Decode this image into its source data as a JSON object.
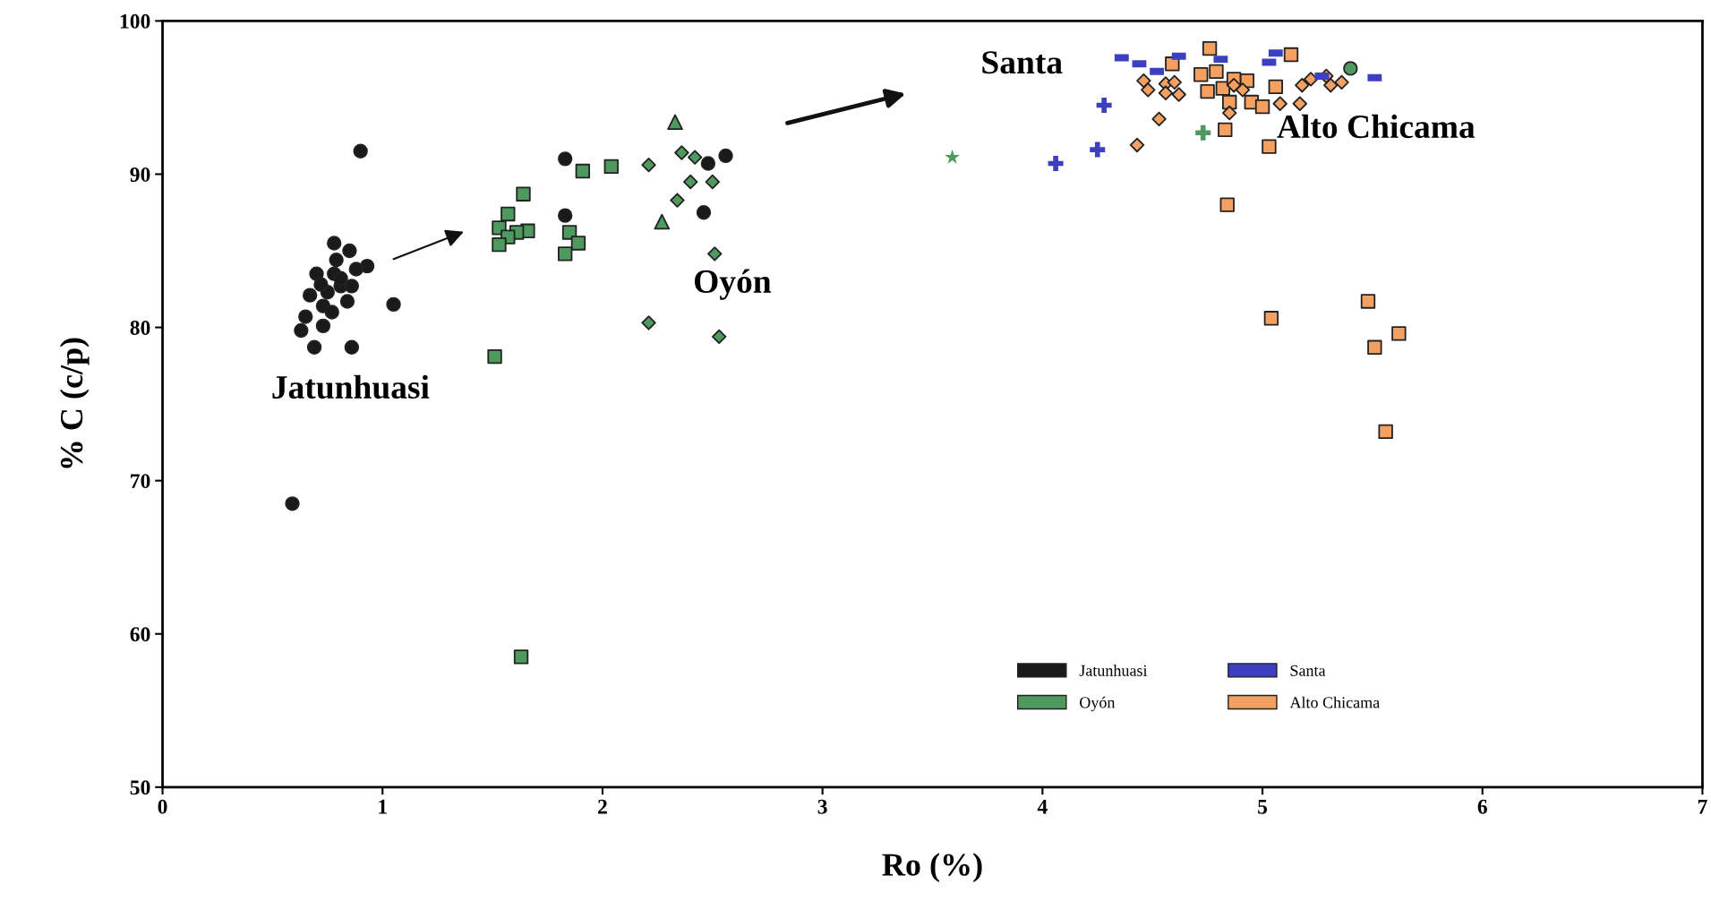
{
  "chart_data": {
    "type": "scatter",
    "xlabel": "Ro (%)",
    "ylabel": "% C (c/p)",
    "xlim": [
      0,
      7
    ],
    "xticks": [
      0,
      1,
      2,
      3,
      4,
      5,
      6,
      7
    ],
    "ylim": [
      50,
      100
    ],
    "yticks": [
      50,
      60,
      70,
      80,
      90,
      100
    ],
    "grid": false,
    "legend": "bottom right",
    "annotations": [
      "Jatunhuasi",
      "Oyón",
      "Santa",
      "Alto Chicama"
    ],
    "series": [
      {
        "name": "Jatunhuasi",
        "color": "#1a1a1a",
        "marker": "circle",
        "x": [
          0.9,
          0.59,
          0.78,
          0.63,
          0.69,
          0.86,
          1.05,
          0.93,
          0.88,
          0.85,
          0.78,
          0.79,
          0.7,
          0.67,
          0.73,
          0.65,
          0.73,
          0.75,
          0.81,
          0.84,
          0.77,
          0.81,
          0.86,
          0.72,
          1.83,
          1.83,
          2.48,
          2.56,
          2.46
        ],
        "values": [
          91.5,
          68.5,
          83.5,
          79.8,
          78.7,
          78.7,
          81.5,
          84.0,
          83.8,
          85.0,
          85.5,
          84.4,
          83.5,
          82.1,
          81.4,
          80.7,
          80.1,
          82.3,
          82.7,
          81.7,
          81.0,
          83.2,
          82.7,
          82.8,
          91.0,
          87.3,
          90.7,
          91.2,
          87.5
        ]
      },
      {
        "name": "Oyón",
        "color": "#4e9a5e",
        "marker": "square",
        "x": [
          1.91,
          2.04,
          1.64,
          1.57,
          1.53,
          1.66,
          1.61,
          1.57,
          1.53,
          1.85,
          1.89,
          1.83,
          1.51,
          1.63
        ],
        "values": [
          90.2,
          90.5,
          88.7,
          87.4,
          86.5,
          86.3,
          86.2,
          85.9,
          85.4,
          86.2,
          85.5,
          84.8,
          78.1,
          58.5
        ]
      },
      {
        "color": "#4e9a5e",
        "marker": "diamond",
        "x": [
          2.21,
          2.36,
          2.42,
          2.4,
          2.5,
          2.34,
          2.51,
          2.21,
          2.53
        ],
        "values": [
          90.6,
          91.4,
          91.1,
          89.5,
          89.5,
          88.3,
          84.8,
          80.3,
          79.4
        ]
      },
      {
        "color": "#4e9a5e",
        "marker": "triangle",
        "x": [
          2.27,
          2.33
        ],
        "values": [
          86.9,
          93.4
        ]
      },
      {
        "color": "#4e9a5e",
        "marker": "star",
        "x": [
          3.59
        ],
        "values": [
          91.1
        ]
      },
      {
        "color": "#4e9a5e",
        "marker": "cross",
        "x": [
          4.73
        ],
        "values": [
          92.7
        ]
      },
      {
        "color": "#4e9a5e",
        "marker": "circle",
        "x": [
          5.4
        ],
        "values": [
          96.9
        ]
      },
      {
        "name": "Santa",
        "color": "#3b3fc0",
        "marker": "cross",
        "x": [
          4.28,
          4.25,
          4.06
        ],
        "values": [
          94.5,
          91.6,
          90.7
        ]
      },
      {
        "color": "#3b3fc0",
        "x": [
          4.36,
          4.44,
          4.52,
          4.62,
          4.81,
          5.03,
          5.06,
          5.27,
          5.51
        ],
        "values": [
          97.6,
          97.2,
          96.7,
          97.7,
          97.5,
          97.3,
          97.9,
          96.4,
          96.3
        ]
      },
      {
        "name": "Alto Chicama",
        "color": "#f4a060",
        "marker": "square",
        "x": [
          4.76,
          5.13,
          4.59,
          4.72,
          4.79,
          4.75,
          4.82,
          4.93,
          4.85,
          4.95,
          5.0,
          5.06,
          4.83,
          5.03,
          4.84,
          4.87,
          5.04,
          5.48,
          5.62,
          5.51,
          5.56
        ],
        "values": [
          98.2,
          97.8,
          97.2,
          96.5,
          96.7,
          95.4,
          95.6,
          96.1,
          94.7,
          94.7,
          94.4,
          95.7,
          92.9,
          91.8,
          88.0,
          96.2,
          80.6,
          81.7,
          79.6,
          78.7,
          73.2
        ]
      },
      {
        "color": "#f4a060",
        "marker": "diamond",
        "x": [
          4.46,
          4.48,
          4.56,
          4.6,
          4.62,
          4.56,
          4.53,
          4.43,
          4.87,
          4.91,
          4.85,
          5.08,
          5.17,
          5.18,
          5.22,
          5.29,
          5.31,
          5.36
        ],
        "values": [
          96.1,
          95.5,
          95.9,
          96.0,
          95.2,
          95.3,
          93.6,
          91.9,
          95.8,
          95.5,
          94.0,
          94.6,
          94.6,
          95.8,
          96.2,
          96.4,
          95.8,
          96.0
        ]
      }
    ]
  }
}
